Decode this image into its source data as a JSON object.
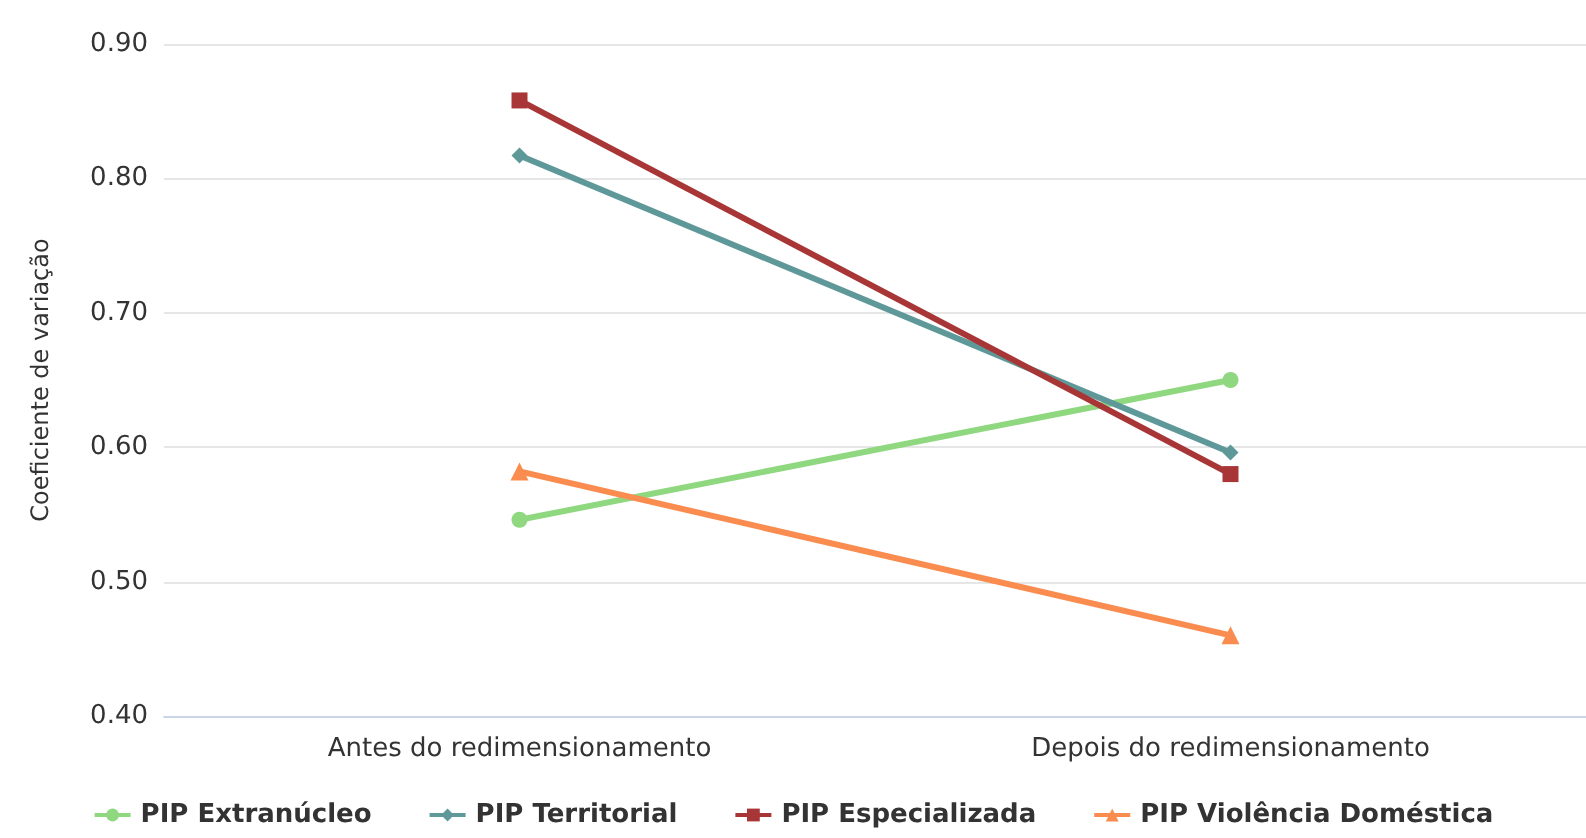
{
  "chart_data": {
    "type": "line",
    "ylabel": "Coeficiente de variação",
    "categories": [
      "Antes do redimensionamento",
      "Depois do redimensionamento"
    ],
    "series": [
      {
        "name": "PIP Extranúcleo",
        "color": "#8fd880",
        "marker": "circle",
        "values": [
          0.546,
          0.65
        ]
      },
      {
        "name": "PIP Territorial",
        "color": "#5e9898",
        "marker": "diamond",
        "values": [
          0.817,
          0.596
        ]
      },
      {
        "name": "PIP Especializada",
        "color": "#a83636",
        "marker": "square",
        "values": [
          0.858,
          0.58
        ]
      },
      {
        "name": "PIP Violência Doméstica",
        "color": "#f98c4e",
        "marker": "triangle",
        "values": [
          0.582,
          0.46
        ]
      }
    ],
    "ylim": [
      0.4,
      0.9
    ],
    "yticks": [
      {
        "value": 0.4,
        "label": "0.40"
      },
      {
        "value": 0.5,
        "label": "0.50"
      },
      {
        "value": 0.6,
        "label": "0.60"
      },
      {
        "value": 0.7,
        "label": "0.70"
      },
      {
        "value": 0.8,
        "label": "0.80"
      },
      {
        "value": 0.9,
        "label": "0.90"
      }
    ],
    "grid": "y",
    "legend": "bottom",
    "line_style": "solid"
  }
}
